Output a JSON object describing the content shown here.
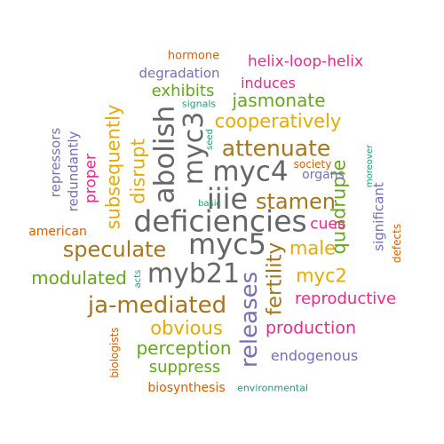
{
  "colors": {
    "orange": "#d95f02",
    "magenta": "#e7298a",
    "purple": "#7570b3",
    "green": "#66a61e",
    "teal": "#1b9e77",
    "gold": "#e6ab02",
    "brown": "#a6761d",
    "gray": "#666666"
  },
  "words": {
    "deficiencies": "deficiencies",
    "myc5": "myc5",
    "myb21": "myb21",
    "myc4": "myc4",
    "iiie": "iiie",
    "abolish": "abolish",
    "myc3": "myc3",
    "releases": "releases",
    "ja_mediated": "ja-mediated",
    "attenuate": "attenuate",
    "speculate": "speculate",
    "stamen": "stamen",
    "cooperatively": "cooperatively",
    "fertility": "fertility",
    "obvious": "obvious",
    "jasmonate": "jasmonate",
    "disrupt": "disrupt",
    "subsequently": "subsequently",
    "male": "male",
    "quadruple": "quadruple",
    "myc2": "myc2",
    "modulated": "modulated",
    "perception": "perception",
    "production": "production",
    "reproductive": "reproductive",
    "exhibits": "exhibits",
    "suppress": "suppress",
    "helix_loop_helix": "helix-loop-helix",
    "proper": "proper",
    "cues": "cues",
    "induces": "induces",
    "endogenous": "endogenous",
    "redundantly": "redundantly",
    "significant": "significant",
    "repressors": "repressors",
    "degradation": "degradation",
    "biosynthesis": "biosynthesis",
    "organs": "organs",
    "american": "american",
    "hormone": "hormone",
    "society": "society",
    "biologists": "biologists",
    "defects": "defects",
    "signals": "signals",
    "environmental": "environmental",
    "moreover": "moreover",
    "seed": "seed",
    "basic": "basic",
    "acts": "acts"
  }
}
